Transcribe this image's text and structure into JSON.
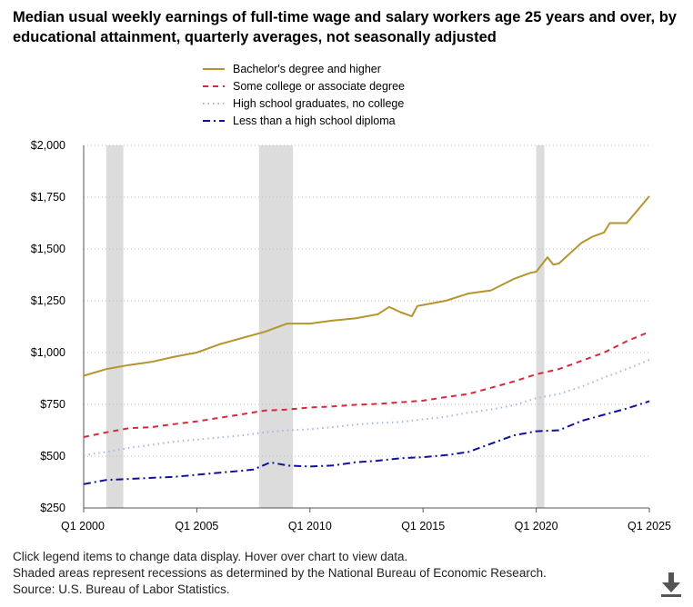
{
  "title": "Median usual weekly earnings of full-time wage and salary workers age 25 years and over, by educational attainment, quarterly averages, not seasonally adjusted",
  "legend": [
    {
      "label": "Bachelor's degree and higher",
      "color": "#b5952f",
      "dash": "none"
    },
    {
      "label": "Some college or associate degree",
      "color": "#d62b3a",
      "dash": "6,5"
    },
    {
      "label": "High school graduates, no college",
      "color": "#a8b4ec",
      "dash": "1.5,4"
    },
    {
      "label": "Less than a high school diploma",
      "color": "#10109a",
      "dash": "8,4,2,4"
    }
  ],
  "footer": {
    "line1": "Click legend items to change data display. Hover over chart to view data.",
    "line2": "Shaded areas represent recessions as determined by the National Bureau of Economic Research.",
    "line3": "Source: U.S. Bureau of Labor Statistics."
  },
  "download_icon": "download-arrow-icon",
  "chart_data": {
    "type": "line",
    "title": "Median usual weekly earnings of full-time wage and salary workers age 25 years and over, by educational attainment, quarterly averages, not seasonally adjusted",
    "xlabel": "",
    "ylabel": "",
    "x_range": [
      2000.0,
      2025.0
    ],
    "ylim": [
      250,
      2000
    ],
    "y_ticks": [
      250,
      500,
      750,
      1000,
      1250,
      1500,
      1750,
      2000
    ],
    "y_tick_labels": [
      "$250",
      "$500",
      "$750",
      "$1,000",
      "$1,250",
      "$1,500",
      "$1,750",
      "$2,000"
    ],
    "x_ticks": [
      2000,
      2005,
      2010,
      2015,
      2020,
      2025
    ],
    "x_tick_labels": [
      "Q1 2000",
      "Q1 2005",
      "Q1 2010",
      "Q1 2015",
      "Q1 2020",
      "Q1 2025"
    ],
    "grid": "horizontal dotted",
    "legend_position": "top",
    "recessions": [
      [
        2001.0,
        2001.75
      ],
      [
        2007.75,
        2009.25
      ],
      [
        2020.0,
        2020.25
      ]
    ],
    "series": [
      {
        "name": "Bachelor's degree and higher",
        "points": [
          [
            2000.0,
            888
          ],
          [
            2001.0,
            920
          ],
          [
            2002.0,
            940
          ],
          [
            2003.0,
            955
          ],
          [
            2004.0,
            980
          ],
          [
            2005.0,
            1000
          ],
          [
            2006.0,
            1040
          ],
          [
            2007.0,
            1070
          ],
          [
            2008.0,
            1100
          ],
          [
            2009.0,
            1140
          ],
          [
            2010.0,
            1140
          ],
          [
            2011.0,
            1155
          ],
          [
            2012.0,
            1165
          ],
          [
            2013.0,
            1185
          ],
          [
            2013.5,
            1220
          ],
          [
            2014.0,
            1195
          ],
          [
            2014.5,
            1175
          ],
          [
            2014.75,
            1225
          ],
          [
            2015.0,
            1230
          ],
          [
            2016.0,
            1250
          ],
          [
            2017.0,
            1285
          ],
          [
            2018.0,
            1300
          ],
          [
            2019.0,
            1355
          ],
          [
            2019.75,
            1385
          ],
          [
            2020.0,
            1390
          ],
          [
            2020.5,
            1460
          ],
          [
            2020.75,
            1425
          ],
          [
            2021.0,
            1430
          ],
          [
            2022.0,
            1530
          ],
          [
            2022.5,
            1560
          ],
          [
            2023.0,
            1580
          ],
          [
            2023.25,
            1625
          ],
          [
            2024.0,
            1625
          ],
          [
            2024.5,
            1690
          ],
          [
            2025.0,
            1755
          ]
        ]
      },
      {
        "name": "Some college or associate degree",
        "points": [
          [
            2000.0,
            592
          ],
          [
            2001.0,
            615
          ],
          [
            2002.0,
            635
          ],
          [
            2003.0,
            640
          ],
          [
            2004.0,
            655
          ],
          [
            2005.0,
            668
          ],
          [
            2006.0,
            685
          ],
          [
            2007.0,
            702
          ],
          [
            2008.0,
            720
          ],
          [
            2009.0,
            725
          ],
          [
            2010.0,
            735
          ],
          [
            2011.0,
            740
          ],
          [
            2012.0,
            748
          ],
          [
            2013.0,
            752
          ],
          [
            2014.0,
            760
          ],
          [
            2015.0,
            768
          ],
          [
            2016.0,
            785
          ],
          [
            2017.0,
            800
          ],
          [
            2018.0,
            830
          ],
          [
            2019.0,
            860
          ],
          [
            2020.0,
            895
          ],
          [
            2021.0,
            920
          ],
          [
            2022.0,
            960
          ],
          [
            2023.0,
            1000
          ],
          [
            2024.0,
            1055
          ],
          [
            2025.0,
            1100
          ]
        ]
      },
      {
        "name": "High school graduates, no college",
        "points": [
          [
            2000.0,
            505
          ],
          [
            2001.0,
            520
          ],
          [
            2002.0,
            540
          ],
          [
            2003.0,
            555
          ],
          [
            2004.0,
            570
          ],
          [
            2005.0,
            580
          ],
          [
            2006.0,
            590
          ],
          [
            2007.0,
            600
          ],
          [
            2008.0,
            615
          ],
          [
            2009.0,
            625
          ],
          [
            2010.0,
            630
          ],
          [
            2011.0,
            640
          ],
          [
            2012.0,
            652
          ],
          [
            2013.0,
            660
          ],
          [
            2014.0,
            665
          ],
          [
            2015.0,
            678
          ],
          [
            2016.0,
            690
          ],
          [
            2017.0,
            710
          ],
          [
            2018.0,
            725
          ],
          [
            2019.0,
            745
          ],
          [
            2020.0,
            780
          ],
          [
            2021.0,
            800
          ],
          [
            2022.0,
            835
          ],
          [
            2023.0,
            880
          ],
          [
            2024.0,
            920
          ],
          [
            2025.0,
            965
          ]
        ]
      },
      {
        "name": "Less than a high school diploma",
        "points": [
          [
            2000.0,
            365
          ],
          [
            2001.0,
            385
          ],
          [
            2002.0,
            390
          ],
          [
            2003.0,
            395
          ],
          [
            2004.0,
            400
          ],
          [
            2005.0,
            410
          ],
          [
            2006.0,
            420
          ],
          [
            2007.0,
            430
          ],
          [
            2007.5,
            435
          ],
          [
            2008.25,
            470
          ],
          [
            2009.0,
            455
          ],
          [
            2010.0,
            450
          ],
          [
            2011.0,
            455
          ],
          [
            2012.0,
            470
          ],
          [
            2013.0,
            478
          ],
          [
            2014.0,
            490
          ],
          [
            2015.0,
            495
          ],
          [
            2016.0,
            505
          ],
          [
            2017.0,
            520
          ],
          [
            2018.0,
            560
          ],
          [
            2019.0,
            600
          ],
          [
            2020.0,
            620
          ],
          [
            2021.0,
            625
          ],
          [
            2022.0,
            670
          ],
          [
            2023.0,
            700
          ],
          [
            2024.0,
            730
          ],
          [
            2025.0,
            765
          ]
        ]
      }
    ]
  }
}
